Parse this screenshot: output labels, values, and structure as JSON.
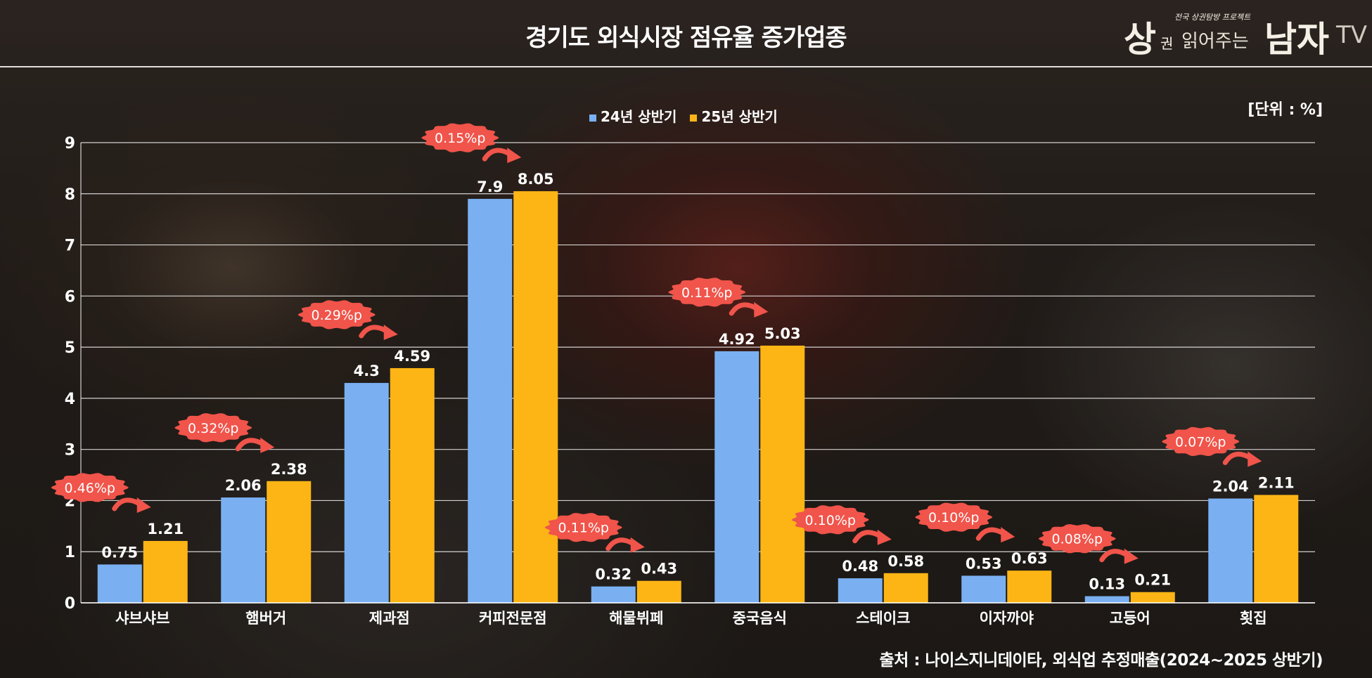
{
  "header": {
    "title": "경기도 외식시장 점유율 증가업종"
  },
  "logo": {
    "part1": "상",
    "part2": "권",
    "tagline": "전국 상권탐방 프로젝트",
    "part3": "읽어주는",
    "part4": "남자",
    "part5": "TV"
  },
  "unit_label": "[단위 : %]",
  "source": "출처 : 나이스지니데이타, 외식업 추정매출(2024~2025 상반기)",
  "colors": {
    "series_2024": "#7ab0f2",
    "series_2025": "#fdb515",
    "badge": "#f0544a"
  },
  "chart_data": {
    "type": "bar",
    "categories": [
      "샤브샤브",
      "햄버거",
      "제과점",
      "커피전문점",
      "해물뷔페",
      "중국음식",
      "스테이크",
      "이자까야",
      "고등어",
      "횟집"
    ],
    "series": [
      {
        "name": "24년 상반기",
        "values": [
          0.75,
          2.06,
          4.3,
          7.9,
          0.32,
          4.92,
          0.48,
          0.53,
          0.13,
          2.04
        ]
      },
      {
        "name": "25년 상반기",
        "values": [
          1.21,
          2.38,
          4.59,
          8.05,
          0.43,
          5.03,
          0.58,
          0.63,
          0.21,
          2.11
        ]
      }
    ],
    "value_labels": [
      [
        "0.75",
        "2.06",
        "4.3",
        "7.9",
        "0.32",
        "4.92",
        "0.48",
        "0.53",
        "0.13",
        "2.04"
      ],
      [
        "1.21",
        "2.38",
        "4.59",
        "8.05",
        "0.43",
        "5.03",
        "0.58",
        "0.63",
        "0.21",
        "2.11"
      ]
    ],
    "annotations": [
      "0.46%p",
      "0.32%p",
      "0.29%p",
      "0.15%p",
      "0.11%p",
      "0.11%p",
      "0.10%p",
      "0.10%p",
      "0.08%p",
      "0.07%p"
    ],
    "ylim": [
      0,
      9
    ],
    "yticks": [
      "0",
      "1",
      "2",
      "3",
      "4",
      "5",
      "6",
      "7",
      "8",
      "9"
    ],
    "grid": true,
    "legend_position": "top-center"
  }
}
